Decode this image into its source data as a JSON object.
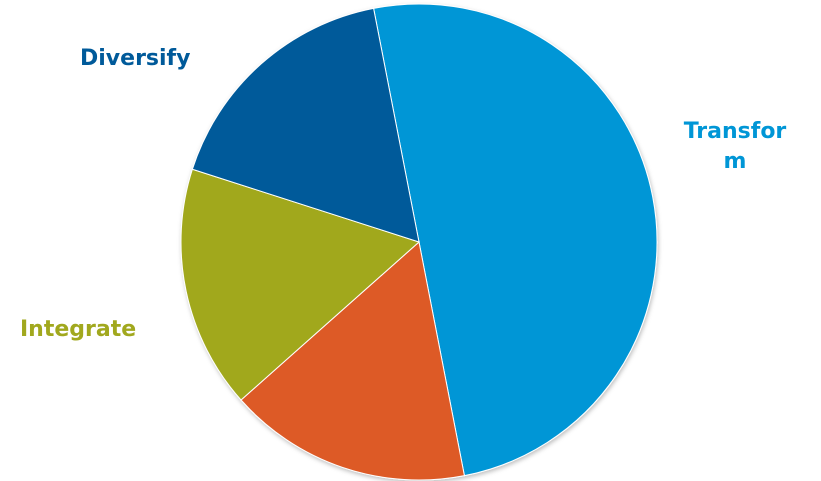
{
  "chart_data": {
    "type": "pie",
    "start_angle_deg": -11,
    "slices": [
      {
        "label": "Transform",
        "value": 50,
        "color": "#0096D6"
      },
      {
        "label": "",
        "value": 16.5,
        "color": "#DD5A28"
      },
      {
        "label": "Integrate",
        "value": 16.5,
        "color": "#A1A81E"
      },
      {
        "label": "Diversify",
        "value": 17,
        "color": "#005A9A"
      }
    ],
    "labels": {
      "diversify": "Diversify",
      "integrate": "Integrate",
      "transform_line1": "Transfor",
      "transform_line2": "m"
    },
    "label_colors": {
      "diversify": "#005A9A",
      "integrate": "#A1A81E",
      "transform": "#0096D6"
    }
  }
}
